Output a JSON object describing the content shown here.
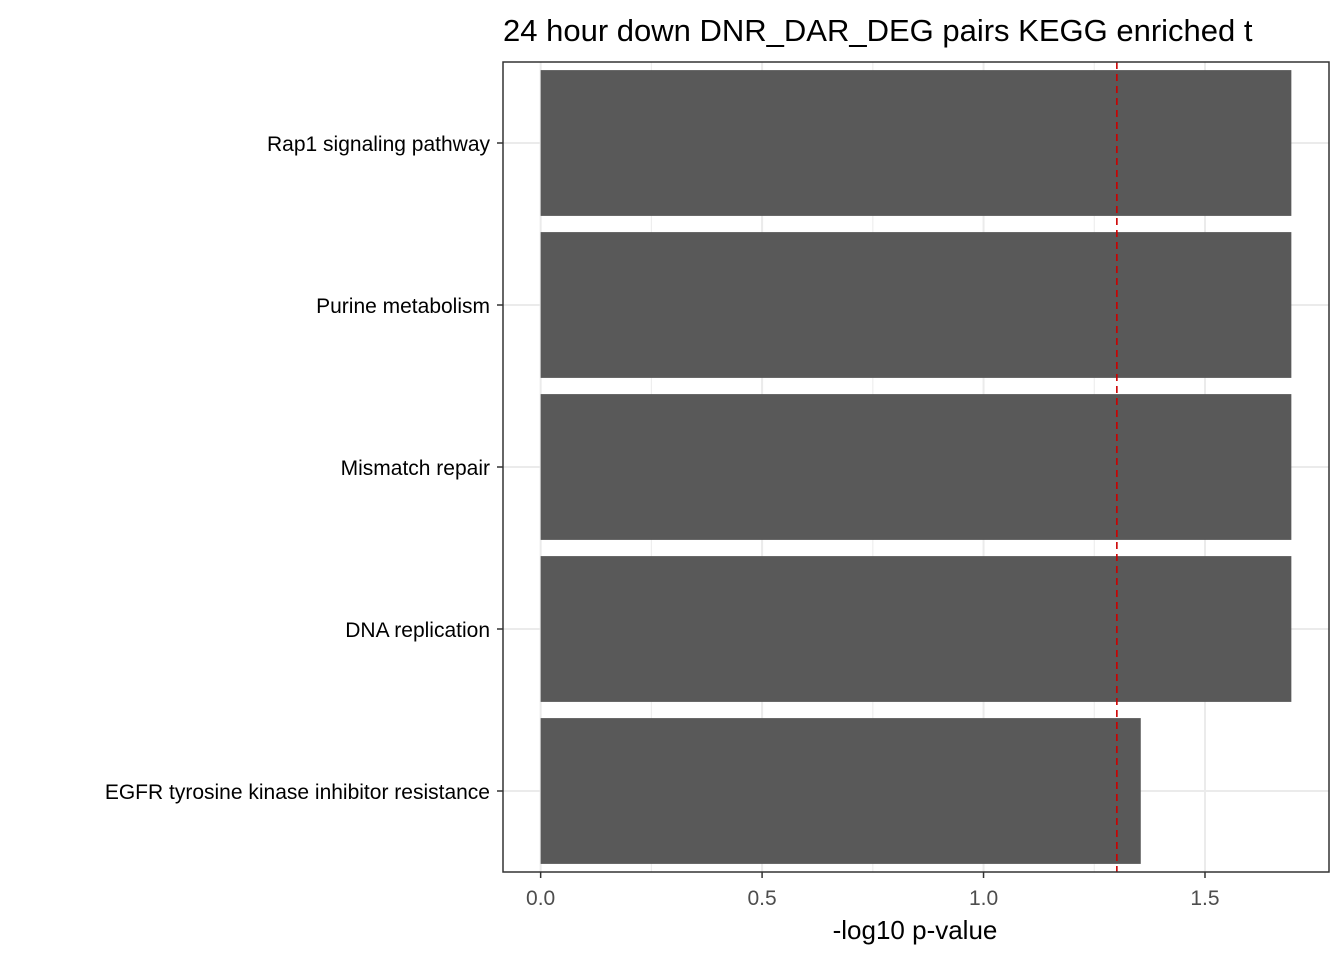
{
  "chart_data": {
    "type": "bar",
    "orientation": "horizontal",
    "title": "24 hour down DNR_DAR_DEG pairs  KEGG enriched t",
    "xlabel": "-log10 p-value",
    "ylabel": "",
    "categories": [
      "Rap1 signaling pathway",
      "Purine metabolism",
      "Mismatch repair",
      "DNA replication",
      "EGFR tyrosine kinase inhibitor resistance"
    ],
    "values": [
      1.695,
      1.695,
      1.695,
      1.695,
      1.355
    ],
    "xlim": [
      -0.085,
      1.78
    ],
    "xticks": [
      0.0,
      0.5,
      1.0,
      1.5
    ],
    "xtick_labels": [
      "0.0",
      "0.5",
      "1.0",
      "1.5"
    ],
    "threshold_line": 1.301,
    "colors": {
      "bar": "#595959",
      "threshold": "#cc0000",
      "grid": "#ebebeb",
      "panel_border": "#333333"
    },
    "grid": true,
    "legend": "none"
  }
}
